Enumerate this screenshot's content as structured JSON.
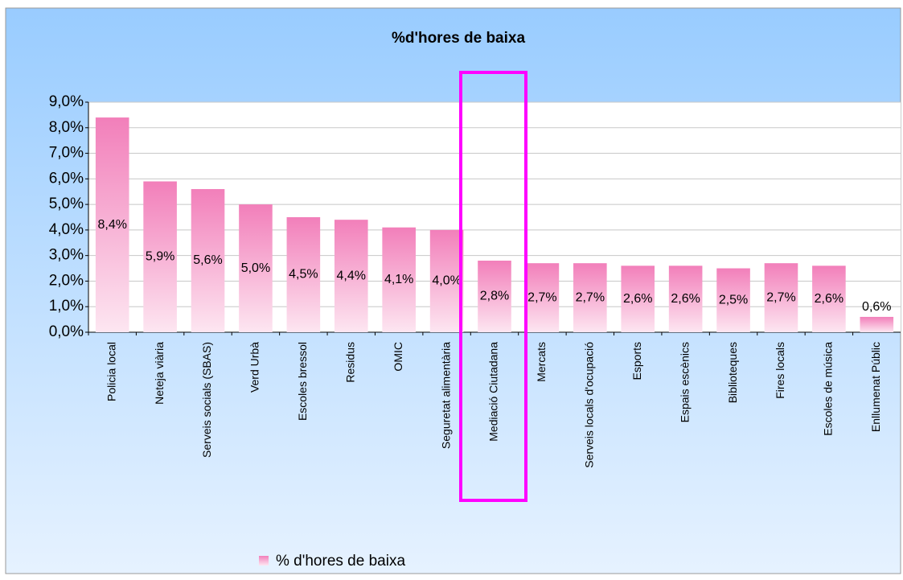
{
  "chart_data": {
    "type": "bar",
    "title": "%d'hores de baixa",
    "categories": [
      "Policia local",
      "Neteja viària",
      "Serveis socials (SBAS)",
      "Verd Urbà",
      "Escoles bressol",
      "Residus",
      "OMIC",
      "Seguretat alimentària",
      "Mediació Ciutadana",
      "Mercats",
      "Serveis locals d'ocupació",
      "Esports",
      "Espais escènics",
      "Biblioteques",
      "Fires locals",
      "Escoles de música",
      "Enllumenat Públic"
    ],
    "series": [
      {
        "name": "% d'hores de baixa",
        "color": "#f27fba",
        "values": [
          8.4,
          5.9,
          5.6,
          5.0,
          4.5,
          4.4,
          4.1,
          4.0,
          2.8,
          2.7,
          2.7,
          2.6,
          2.6,
          2.5,
          2.7,
          2.6,
          0.6
        ],
        "value_labels": [
          "8,4%",
          "5,9%",
          "5,6%",
          "5,0%",
          "4,5%",
          "4,4%",
          "4,1%",
          "4,0%",
          "2,8%",
          "2,7%",
          "2,7%",
          "2,6%",
          "2,6%",
          "2,5%",
          "2,7%",
          "2,6%",
          "0,6%"
        ]
      }
    ],
    "ylim": [
      0,
      9
    ],
    "yticks": [
      {
        "value": 0,
        "label": "0,0%"
      },
      {
        "value": 1,
        "label": "1,0%"
      },
      {
        "value": 2,
        "label": "2,0%"
      },
      {
        "value": 3,
        "label": "3,0%"
      },
      {
        "value": 4,
        "label": "4,0%"
      },
      {
        "value": 5,
        "label": "5,0%"
      },
      {
        "value": 6,
        "label": "6,0%"
      },
      {
        "value": 7,
        "label": "7,0%"
      },
      {
        "value": 8,
        "label": "8,0%"
      },
      {
        "value": 9,
        "label": "9,0%"
      }
    ],
    "grid": true,
    "legend": "bottom"
  }
}
